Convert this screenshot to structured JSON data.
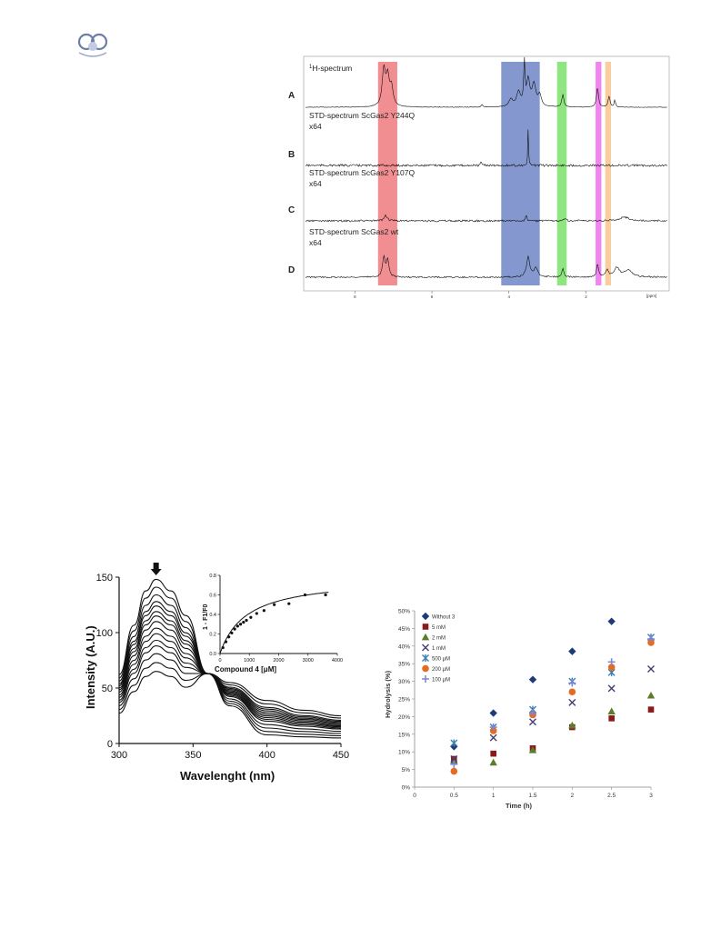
{
  "colors": {
    "nmr_bands": [
      "#ef7a7f",
      "#6f85c6",
      "#7be06a",
      "#f06ff0",
      "#f8c48f"
    ],
    "series": [
      "#1f3a78",
      "#8b1a1a",
      "#5a7d2a",
      "#4b3a70",
      "#3a7fb0",
      "#e46b1f",
      "#7f86d6"
    ]
  },
  "nmr": {
    "xunit": "[ppm]",
    "xticks": [
      "8",
      "6",
      "4",
      "2"
    ],
    "bands_ppm": [
      [
        7.4,
        6.9
      ],
      [
        4.2,
        3.2
      ],
      [
        2.75,
        2.5
      ],
      [
        1.75,
        1.6
      ],
      [
        1.5,
        1.35
      ]
    ],
    "traces": [
      {
        "letter": "A",
        "label1": "1H-spectrum",
        "sup": "1",
        "label1_rest": "H-spectrum",
        "label2": ""
      },
      {
        "letter": "B",
        "label1": "STD-spectrum ScGas2 Y244Q",
        "label2": "x64"
      },
      {
        "letter": "C",
        "label1": "STD-spectrum ScGas2 Y107Q",
        "label2": "x64"
      },
      {
        "letter": "D",
        "label1": "STD-spectrum ScGas2 wt",
        "label2": "x64"
      }
    ]
  },
  "fluorescence": {
    "xlabel": "Wavelenght (nm)",
    "ylabel": "Intensity (A.U.)",
    "xticks": [
      "300",
      "350",
      "400",
      "450"
    ],
    "yticks": [
      "0",
      "50",
      "100",
      "150"
    ],
    "inset": {
      "xlabel_a": "Compound 4 [",
      "xlabel_b": "M]",
      "ylabel": "1 - F1/F0",
      "xticks": [
        "0",
        "1000",
        "2000",
        "3000",
        "4000"
      ],
      "yticks": [
        "0.0",
        "0.2",
        "0.4",
        "0.6",
        "0.8"
      ]
    }
  },
  "chart_data": [
    {
      "type": "line",
      "xlabel": "Wavelenght (nm)",
      "ylabel": "Intensity (A.U.)",
      "xlim": [
        300,
        450
      ],
      "ylim": [
        0,
        150
      ],
      "peak_intensities_at_325nm": [
        148,
        141,
        134,
        128,
        124,
        119,
        115,
        110,
        104,
        99,
        93,
        88,
        81,
        73,
        65
      ],
      "crossing_point": {
        "x": 360,
        "y": 63
      },
      "tail_intensities_at_450nm": [
        5,
        7,
        9,
        11,
        13,
        14,
        15,
        16,
        17,
        18,
        19,
        20,
        21,
        23,
        25
      ]
    },
    {
      "type": "scatter",
      "xlabel": "Compound 4 [μM]",
      "ylabel": "1 - F1/F0",
      "xlim": [
        0,
        4000
      ],
      "ylim": [
        0,
        0.8
      ],
      "x": [
        100,
        200,
        300,
        400,
        500,
        600,
        700,
        800,
        900,
        1050,
        1250,
        1500,
        1850,
        2350,
        2900,
        3600
      ],
      "y": [
        0.06,
        0.12,
        0.17,
        0.21,
        0.25,
        0.28,
        0.3,
        0.32,
        0.34,
        0.37,
        0.41,
        0.44,
        0.5,
        0.51,
        0.6,
        0.6
      ]
    },
    {
      "type": "scatter",
      "xlabel": "Time (h)",
      "ylabel": "Hydrolysis (%)",
      "xlim": [
        0,
        3
      ],
      "ylim": [
        0,
        50
      ],
      "xticks": [
        "0",
        "0.5",
        "1",
        "1.5",
        "2",
        "2.5",
        "3"
      ],
      "yticks": [
        "0%",
        "5%",
        "10%",
        "15%",
        "20%",
        "25%",
        "30%",
        "35%",
        "40%",
        "45%",
        "50%"
      ],
      "x": [
        0.5,
        1,
        1.5,
        2,
        2.5,
        3
      ],
      "series": [
        {
          "name": "Without 3",
          "values": [
            11.5,
            21,
            30.5,
            38.5,
            47,
            null
          ]
        },
        {
          "name": "5 mM",
          "values": [
            8,
            9.5,
            11,
            17,
            19.5,
            22
          ]
        },
        {
          "name": "2 mM",
          "values": [
            7.5,
            7,
            10.5,
            17.5,
            21.5,
            26
          ]
        },
        {
          "name": "1 mM",
          "values": [
            8,
            14,
            18.5,
            24,
            28,
            33.5
          ]
        },
        {
          "name": "500 μM",
          "values": [
            12.5,
            17,
            22,
            30,
            32.5,
            42.5
          ]
        },
        {
          "name": "200 μM",
          "values": [
            4.5,
            16,
            20.5,
            27,
            34,
            41
          ]
        },
        {
          "name": "100 μM",
          "values": [
            6.5,
            17,
            21,
            29.5,
            35.5,
            42
          ]
        }
      ]
    }
  ]
}
